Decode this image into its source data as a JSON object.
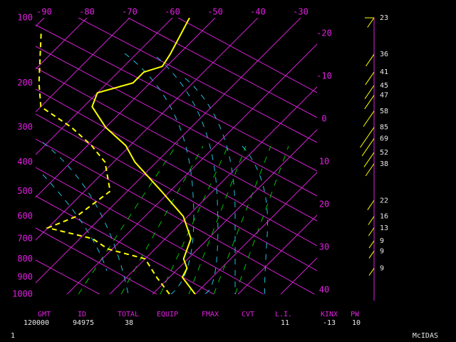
{
  "chart_data": {
    "type": "skewt",
    "pressure_ticks": [
      100,
      200,
      300,
      400,
      500,
      600,
      700,
      800,
      900,
      1000
    ],
    "temperature_ticks_top": [
      -90,
      -80,
      -70,
      -60,
      -50,
      -40,
      -30
    ],
    "temperature_ticks_right": [
      -20,
      -10,
      0,
      10,
      20,
      30,
      40
    ],
    "temperature": {
      "color": "#ffff00",
      "pressure": [
        100,
        150,
        170,
        180,
        200,
        220,
        250,
        300,
        350,
        400,
        500,
        600,
        700,
        800,
        850,
        900,
        1000
      ],
      "values": [
        -56,
        -52,
        -51,
        -54,
        -54,
        -60,
        -58,
        -50,
        -41,
        -35,
        -22,
        -11,
        -4,
        -1,
        2,
        3,
        10
      ]
    },
    "dewpoint": {
      "color": "#ffff00",
      "pressure": [
        120,
        200,
        250,
        300,
        350,
        400,
        500,
        600,
        650,
        700,
        750,
        800,
        900,
        1000
      ],
      "values": [
        -87,
        -76,
        -70,
        -58,
        -49,
        -42,
        -34,
        -36,
        -40,
        -27,
        -21,
        -10,
        -3,
        4
      ]
    },
    "winds": {
      "color": "#ffff00",
      "pressure": [
        100,
        150,
        180,
        205,
        225,
        260,
        300,
        330,
        370,
        405,
        535,
        600,
        650,
        710,
        760,
        850
      ],
      "speeds": [
        23,
        36,
        41,
        45,
        47,
        58,
        85,
        69,
        52,
        38,
        22,
        16,
        13,
        9,
        9,
        9
      ]
    },
    "indices": [
      {
        "label": "GMT",
        "value": 120000
      },
      {
        "label": "ID",
        "value": 94975
      },
      {
        "label": "TOTAL",
        "value": 38
      },
      {
        "label": "EQUIP"
      },
      {
        "label": "FMAX"
      },
      {
        "label": "CVT"
      },
      {
        "label": "L.I.",
        "value": 11
      },
      {
        "label": "KINX",
        "value": -13
      },
      {
        "label": "PW",
        "value": 10
      }
    ]
  },
  "footer": {
    "page": 1,
    "brand": "McIDAS"
  }
}
